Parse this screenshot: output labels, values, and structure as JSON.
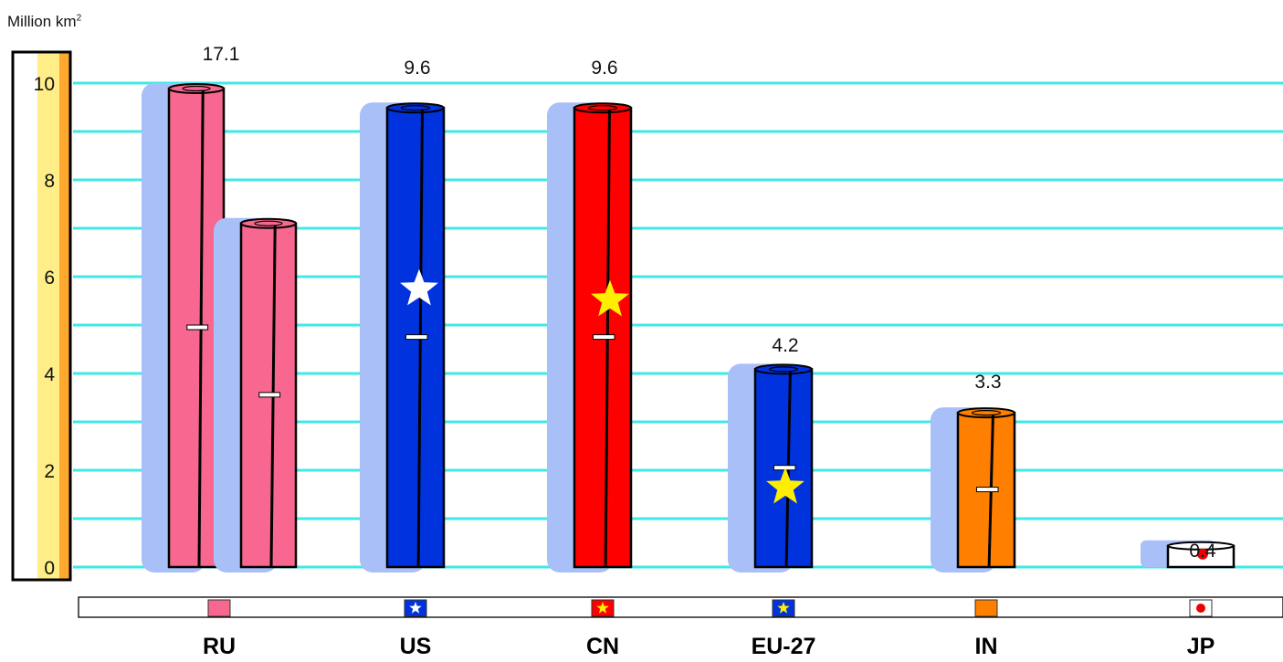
{
  "unit_label": "Million km",
  "unit_superscript": "2",
  "colors": {
    "gridline": "#40E8E8",
    "shadow": "#A8BFF8",
    "axis_band_light": "#FFEE88",
    "axis_band_dark": "#FFA830",
    "pink": "#F7678F",
    "blue": "#0033DD",
    "red": "#FF0000",
    "orange": "#FF8000",
    "white": "#FFFFFF",
    "star_white": "#FFFFFF",
    "star_yellow": "#FFEE00",
    "dot_red": "#EE0000"
  },
  "chart_data": {
    "type": "bar",
    "title": "",
    "ylabel": "Million km²",
    "ylim": [
      0,
      10
    ],
    "yticks": [
      "0",
      "2",
      "4",
      "6",
      "8",
      "10"
    ],
    "gridlines": true,
    "categories": [
      "RU",
      "US",
      "CN",
      "EU-27",
      "IN",
      "JP"
    ],
    "values": [
      17.1,
      9.6,
      9.6,
      4.2,
      3.3,
      0.4
    ],
    "value_labels": [
      "17.1",
      "9.6",
      "9.6",
      "4.2",
      "3.3",
      "0.4"
    ],
    "bar_colors": [
      "pink",
      "blue",
      "red",
      "blue",
      "orange",
      "white"
    ],
    "bar_emblems": [
      "none",
      "star-white",
      "star-yellow",
      "star-yellow",
      "none",
      "dot-red"
    ],
    "flag_icons": [
      "russia-flag-icon",
      "us-flag-icon",
      "china-flag-icon",
      "eu-flag-icon",
      "india-flag-icon",
      "japan-flag-icon"
    ]
  }
}
